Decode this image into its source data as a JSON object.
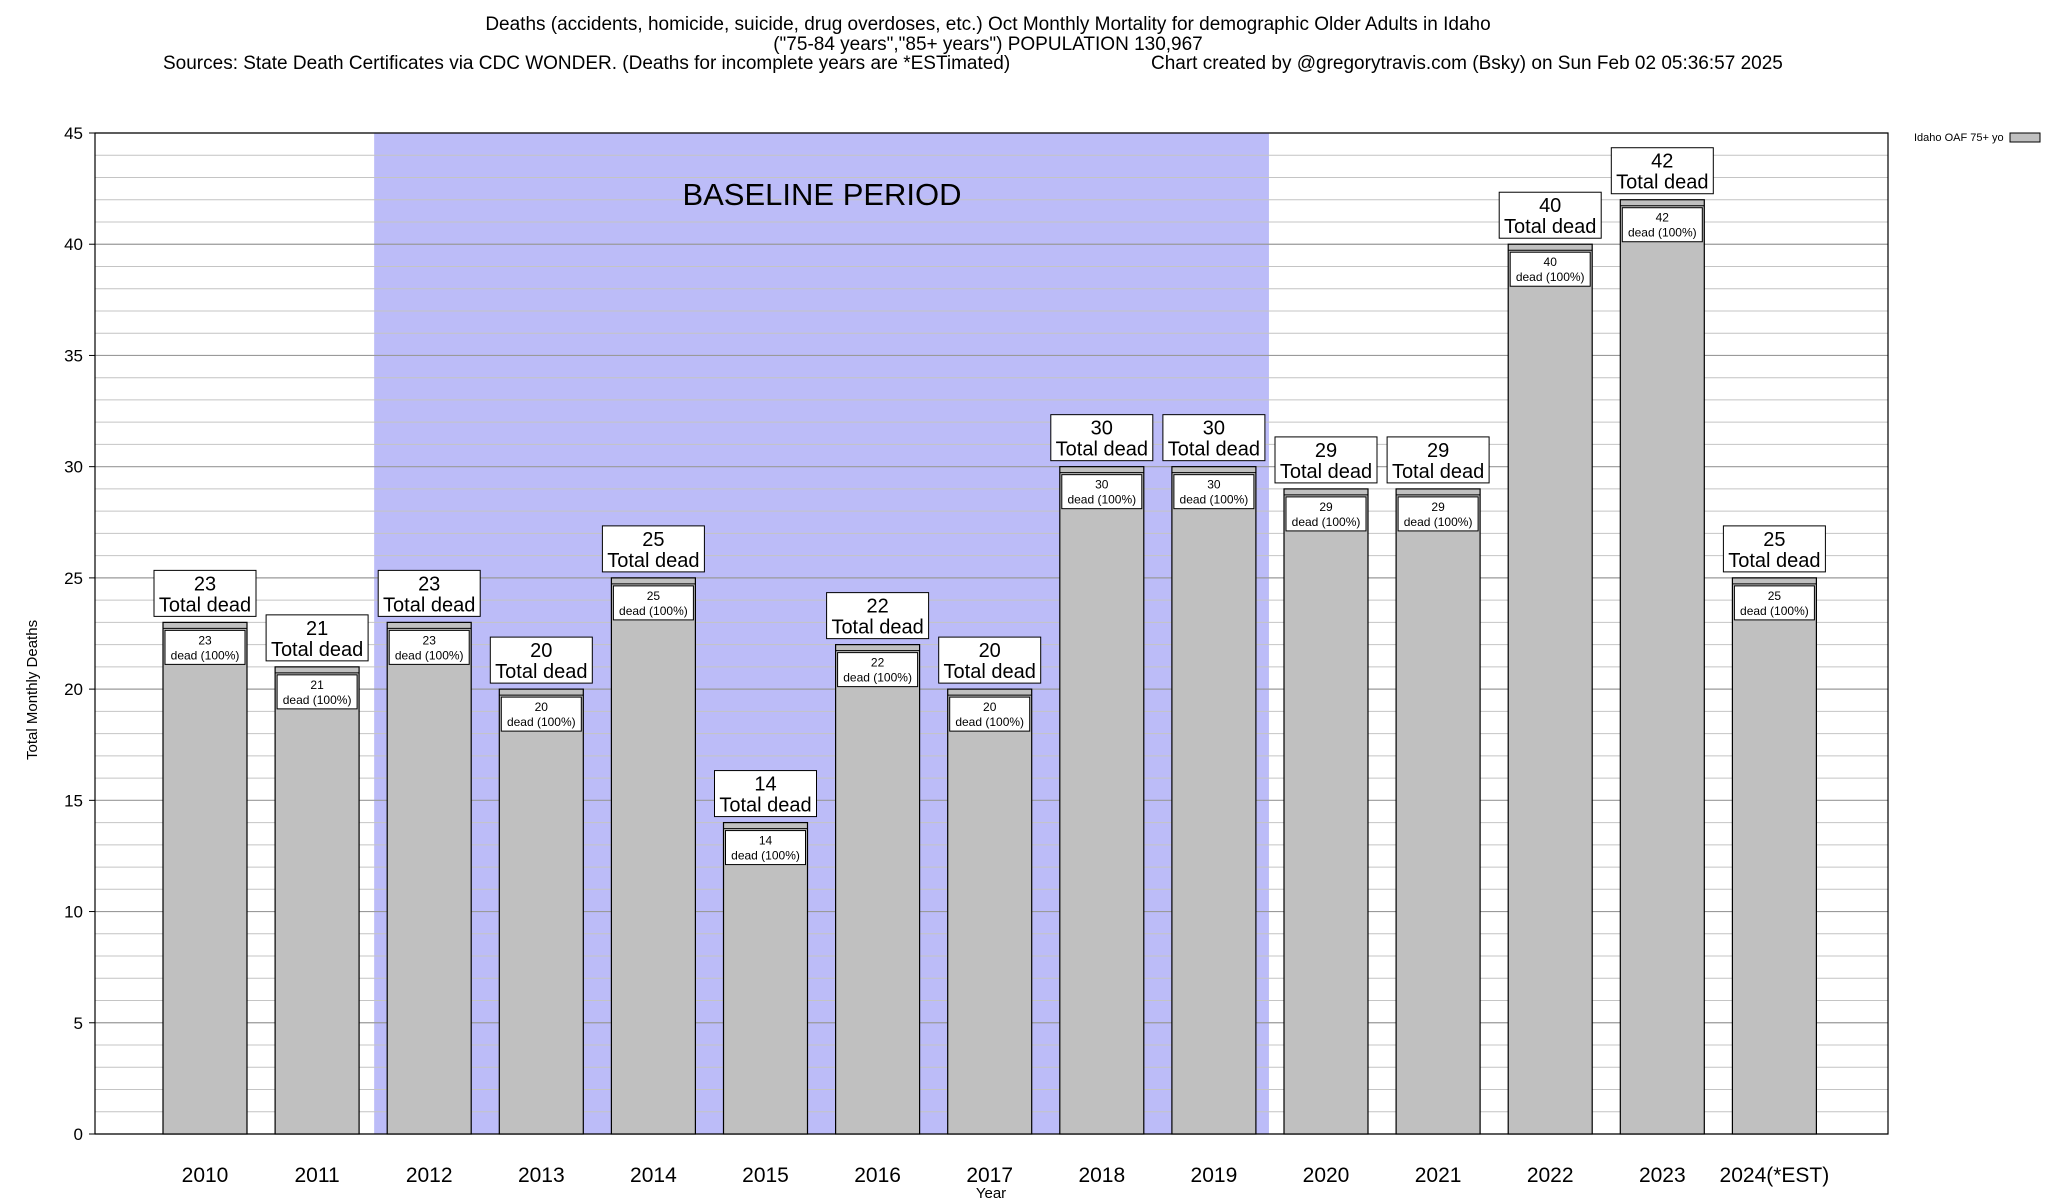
{
  "chart_data": {
    "type": "bar",
    "title": "Deaths (accidents, homicide, suicide, drug overdoses, etc.) Oct Monthly Mortality for demographic Older Adults in Idaho",
    "subtitle": "(\"75-84 years\",\"85+ years\") POPULATION 130,967",
    "sources": "Sources: State Death Certificates via CDC WONDER. (Deaths for incomplete years are *ESTimated)",
    "credit": "Chart created by @gregorytravis.com (Bsky) on Sun Feb 02 05:36:57 2025",
    "xlabel": "Year",
    "ylabel": "Total Monthly Deaths",
    "ylim": [
      0,
      45
    ],
    "yticks": [
      0,
      5,
      10,
      15,
      20,
      25,
      30,
      35,
      40,
      45
    ],
    "categories": [
      "2010",
      "2011",
      "2012",
      "2013",
      "2014",
      "2015",
      "2016",
      "2017",
      "2018",
      "2019",
      "2020",
      "2021",
      "2022",
      "2023",
      "2024(*EST)"
    ],
    "series": [
      {
        "name": "Idaho OAF 75+ yo",
        "color": "#c0c0c0",
        "values": [
          23,
          21,
          23,
          20,
          25,
          14,
          22,
          20,
          30,
          30,
          29,
          29,
          40,
          42,
          25
        ]
      }
    ],
    "total_label_suffix": "Total dead",
    "inner_label_suffix": "dead (100%)",
    "baseline": {
      "label": "BASELINE PERIOD",
      "from": "2012",
      "to": "2019",
      "color": "#bcbcf8"
    },
    "grid": true,
    "legend_position": "top-right"
  }
}
